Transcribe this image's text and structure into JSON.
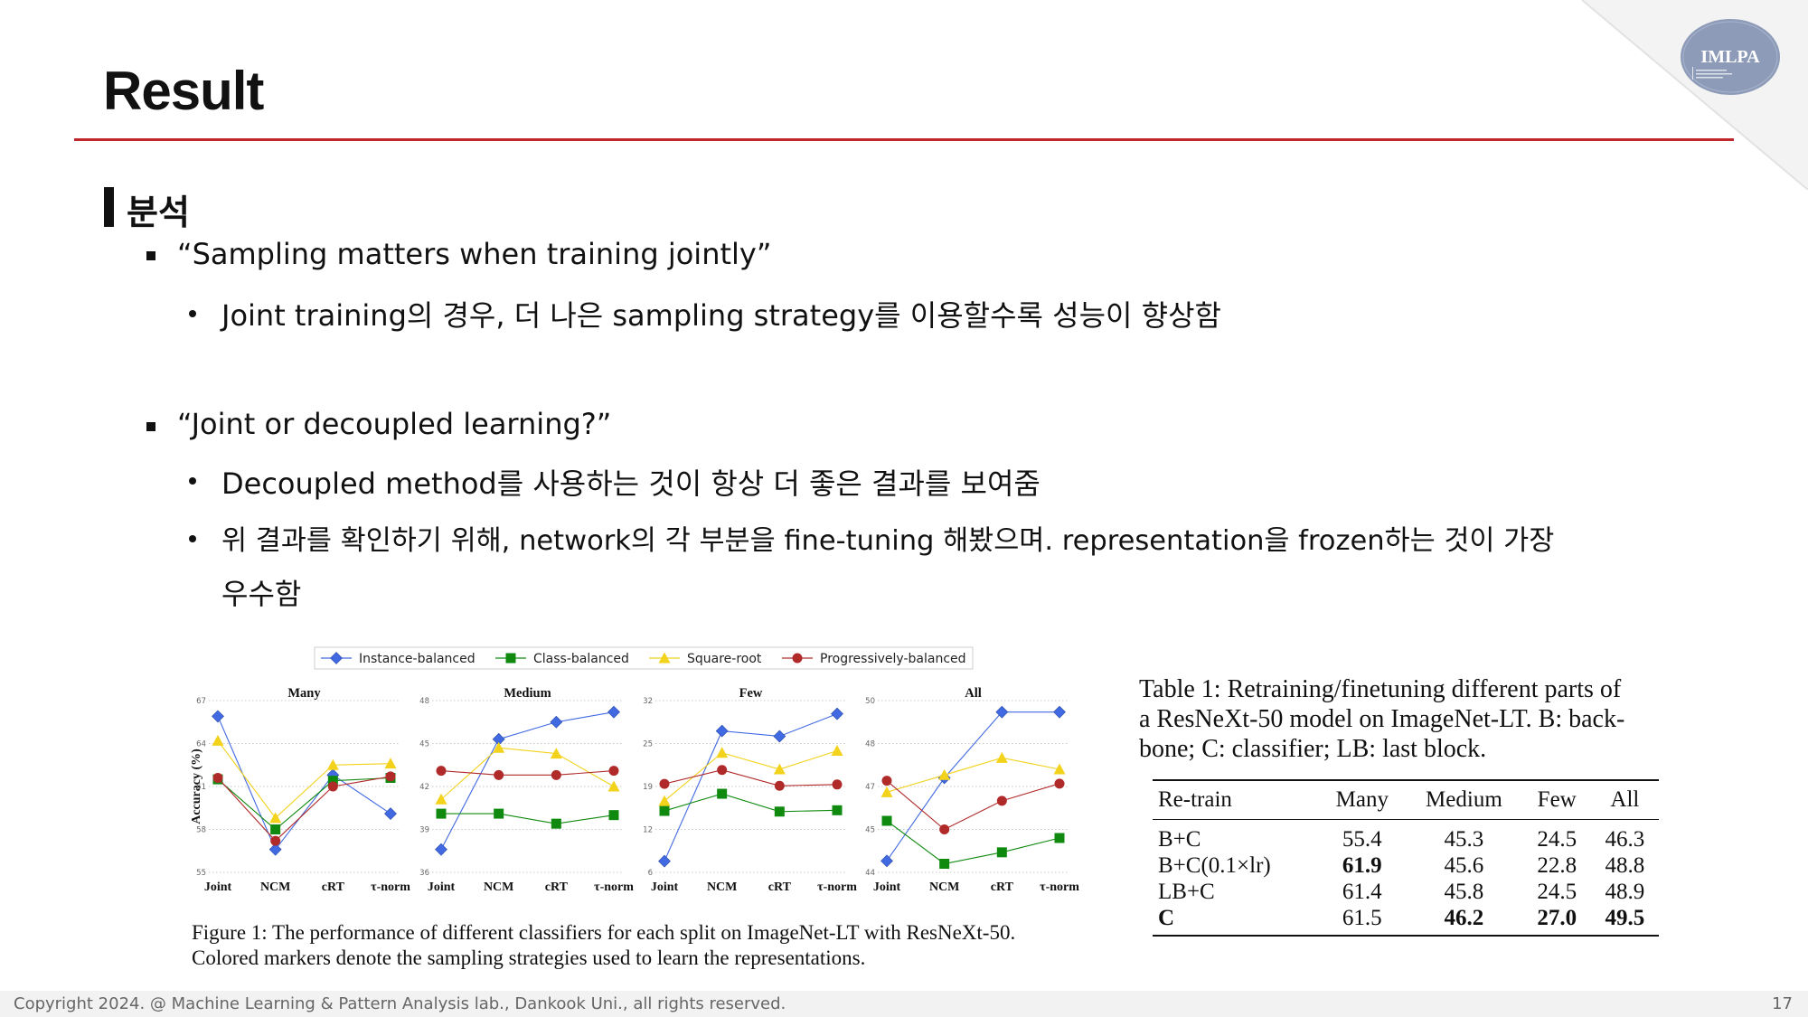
{
  "slide": {
    "title": "Result",
    "logo_text": "IMLPA",
    "section_title": "분석",
    "bullets": [
      {
        "text": "“Sampling matters when training jointly”",
        "sub": [
          "Joint training의 경우, 더 나은 sampling strategy를 이용할수록 성능이 향상함"
        ]
      },
      {
        "text": "“Joint or decoupled learning?”",
        "sub": [
          "Decoupled method를 사용하는 것이 항상 더 좋은 결과를 보여줌",
          "위 결과를 확인하기 위해, network의 각 부분을 fine-tuning 해봤으며. representation을 frozen하는 것이 가장",
          "우수함"
        ]
      }
    ],
    "footer": "Copyright 2024. @ Machine Learning & Pattern Analysis lab., Dankook Uni., all rights reserved.",
    "page_number": "17"
  },
  "figure": {
    "caption_lines": [
      "Figure 1: The performance of different classifiers for each split on ImageNet-LT with ResNeXt-50.",
      "Colored markers denote the sampling strategies used to learn the representations."
    ]
  },
  "chart_data": {
    "type": "line",
    "ylabel": "Accuracy (%)",
    "categories": [
      "Joint",
      "NCM",
      "cRT",
      "τ-norm"
    ],
    "legend": [
      {
        "name": "Instance-balanced",
        "color": "#4169e1",
        "marker": "diamond"
      },
      {
        "name": "Class-balanced",
        "color": "#0f8a0f",
        "marker": "square"
      },
      {
        "name": "Square-root",
        "color": "#f2d21b",
        "marker": "triangle"
      },
      {
        "name": "Progressively-balanced",
        "color": "#b02a2a",
        "marker": "circle"
      }
    ],
    "legend_position": "top",
    "grid": "horizontal-dotted",
    "panels": [
      {
        "title": "Many",
        "ylim": [
          55,
          67
        ],
        "yticks": [
          "55",
          "58",
          "61",
          "64",
          "67"
        ],
        "series": [
          [
            65.9,
            56.6,
            61.8,
            59.1
          ],
          [
            61.5,
            58.0,
            61.4,
            61.6
          ],
          [
            64.2,
            58.8,
            62.5,
            62.6
          ],
          [
            61.6,
            57.2,
            61.0,
            61.7
          ]
        ]
      },
      {
        "title": "Medium",
        "ylim": [
          36,
          48
        ],
        "yticks": [
          "36",
          "39",
          "42",
          "45",
          "48"
        ],
        "series": [
          [
            37.6,
            45.3,
            46.5,
            47.2
          ],
          [
            40.1,
            40.1,
            39.4,
            40.0
          ],
          [
            41.1,
            44.7,
            44.3,
            42.0
          ],
          [
            43.1,
            42.8,
            42.8,
            43.1
          ]
        ]
      },
      {
        "title": "Few",
        "ylim": [
          6,
          32
        ],
        "yticks": [
          "6",
          "12",
          "19",
          "25",
          "32"
        ],
        "series": [
          [
            7.7,
            27.4,
            26.6,
            30.0
          ],
          [
            15.3,
            17.9,
            15.2,
            15.4
          ],
          [
            16.8,
            24.1,
            21.6,
            24.4
          ],
          [
            19.4,
            21.5,
            19.1,
            19.3
          ]
        ]
      },
      {
        "title": "All",
        "ylim": [
          44,
          50
        ],
        "yticks": [
          "44",
          "45",
          "47",
          "48",
          "50"
        ],
        "series": [
          [
            44.4,
            47.3,
            49.6,
            49.6
          ],
          [
            45.8,
            44.3,
            44.7,
            45.2
          ],
          [
            46.8,
            47.4,
            48.0,
            47.6
          ],
          [
            47.2,
            45.5,
            46.5,
            47.1
          ]
        ]
      }
    ]
  },
  "table": {
    "caption_lines": [
      "Table 1:  Retraining/finetuning different parts of",
      "a ResNeXt-50 model on ImageNet-LT. B: back-",
      "bone; C: classifier; LB: last block."
    ],
    "headers": [
      "Re-train",
      "Many",
      "Medium",
      "Few",
      "All"
    ],
    "rows": [
      [
        "B+C",
        "55.4",
        "45.3",
        "24.5",
        "46.3"
      ],
      [
        "B+C(0.1×lr)",
        "61.9",
        "45.6",
        "22.8",
        "48.8"
      ],
      [
        "LB+C",
        "61.4",
        "45.8",
        "24.5",
        "48.9"
      ],
      [
        "C",
        "61.5",
        "46.2",
        "27.0",
        "49.5"
      ]
    ]
  }
}
